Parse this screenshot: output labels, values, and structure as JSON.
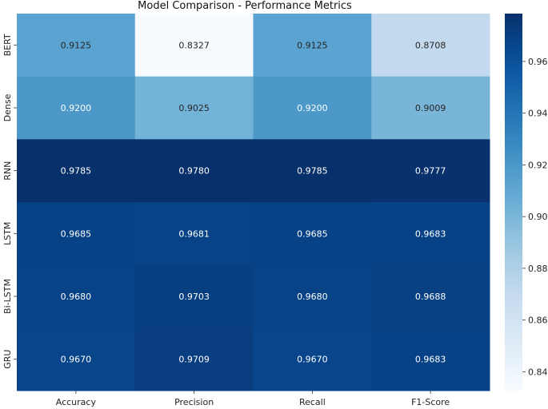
{
  "chart_data": {
    "type": "heatmap",
    "title": "Model Comparison - Performance Metrics",
    "x_categories": [
      "Accuracy",
      "Precision",
      "Recall",
      "F1-Score"
    ],
    "y_categories": [
      "BERT",
      "Dense",
      "RNN",
      "LSTM",
      "Bi-LSTM",
      "GRU"
    ],
    "values": [
      [
        0.9125,
        0.8327,
        0.9125,
        0.8708
      ],
      [
        0.92,
        0.9025,
        0.92,
        0.9009
      ],
      [
        0.9785,
        0.978,
        0.9785,
        0.9777
      ],
      [
        0.9685,
        0.9681,
        0.9685,
        0.9683
      ],
      [
        0.968,
        0.9703,
        0.968,
        0.9688
      ],
      [
        0.967,
        0.9709,
        0.967,
        0.9683
      ]
    ],
    "value_labels": [
      [
        "0.9125",
        "0.8327",
        "0.9125",
        "0.8708"
      ],
      [
        "0.9200",
        "0.9025",
        "0.9200",
        "0.9009"
      ],
      [
        "0.9785",
        "0.9780",
        "0.9785",
        "0.9777"
      ],
      [
        "0.9685",
        "0.9681",
        "0.9685",
        "0.9683"
      ],
      [
        "0.9680",
        "0.9703",
        "0.9680",
        "0.9688"
      ],
      [
        "0.9670",
        "0.9709",
        "0.9670",
        "0.9683"
      ]
    ],
    "colormap": "Blues",
    "vmin": 0.8327,
    "vmax": 0.9785,
    "colorbar_ticks": [
      "0.84",
      "0.86",
      "0.88",
      "0.90",
      "0.92",
      "0.94",
      "0.96"
    ],
    "colorbar_tick_values": [
      0.84,
      0.86,
      0.88,
      0.9,
      0.92,
      0.94,
      0.96
    ],
    "legend_placement": "right"
  }
}
